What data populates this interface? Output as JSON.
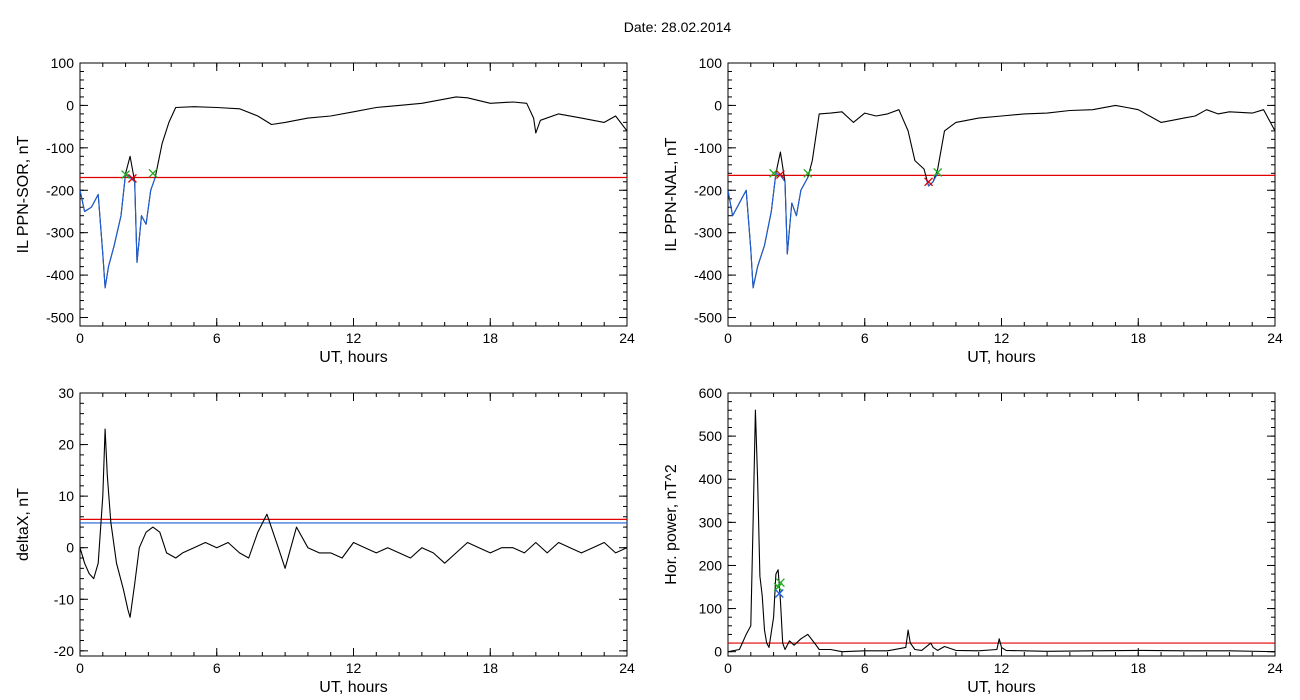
{
  "figure": {
    "title": "Date:  28.02.2014"
  },
  "chart_data": [
    {
      "type": "line",
      "ylabel": "IL PPN-SOR, nT",
      "xlabel": "UT, hours",
      "xlim": [
        0,
        24
      ],
      "ylim": [
        -520,
        100
      ],
      "xticks": [
        0,
        6,
        12,
        18,
        24
      ],
      "yticks": [
        100,
        0,
        -100,
        -200,
        -300,
        -400,
        -500
      ],
      "threshold": {
        "value": -170,
        "color": "#e00000"
      },
      "series": [
        {
          "color": "#000000",
          "x": [
            0,
            0.2,
            0.5,
            0.8,
            1.0,
            1.1,
            1.25,
            1.5,
            1.8,
            2.0,
            2.2,
            2.4,
            2.5,
            2.7,
            2.9,
            3.1,
            3.3,
            3.6,
            3.9,
            4.2,
            5,
            6,
            7,
            7.8,
            8.4,
            9,
            10,
            11,
            12,
            13,
            14,
            15,
            16,
            16.5,
            17,
            18,
            19,
            19.6,
            19.9,
            20.0,
            20.2,
            21,
            22,
            23,
            23.5,
            24
          ],
          "y": [
            -200,
            -250,
            -240,
            -210,
            -350,
            -430,
            -380,
            -330,
            -260,
            -160,
            -120,
            -180,
            -370,
            -260,
            -280,
            -200,
            -170,
            -90,
            -40,
            -5,
            -3,
            -5,
            -8,
            -25,
            -45,
            -40,
            -30,
            -25,
            -15,
            -5,
            0,
            5,
            15,
            20,
            18,
            5,
            8,
            5,
            -30,
            -65,
            -35,
            -20,
            -30,
            -40,
            -25,
            -60
          ]
        },
        {
          "color": "#1f5fd8",
          "x": [
            0,
            0.2,
            0.5,
            0.8,
            1.0,
            1.1,
            1.25,
            1.5,
            1.8,
            2.0,
            2.1,
            2.2,
            2.4,
            2.5,
            2.7,
            2.9,
            3.1,
            3.3
          ],
          "y": [
            -200,
            -250,
            -240,
            -210,
            -350,
            -430,
            -380,
            -330,
            -260,
            -160,
            -165,
            -170,
            -180,
            -370,
            -260,
            -280,
            -200,
            -170
          ]
        }
      ],
      "markers": [
        {
          "x": 2.0,
          "y": -163,
          "type": "x",
          "color": "#22aa22"
        },
        {
          "x": 2.3,
          "y": -172,
          "type": "x",
          "color": "#e00000"
        },
        {
          "x": 3.2,
          "y": -160,
          "type": "x",
          "color": "#22aa22"
        }
      ]
    },
    {
      "type": "line",
      "ylabel": "IL PPN-NAL, nT",
      "xlabel": "UT, hours",
      "xlim": [
        0,
        24
      ],
      "ylim": [
        -520,
        100
      ],
      "xticks": [
        0,
        6,
        12,
        18,
        24
      ],
      "yticks": [
        100,
        0,
        -100,
        -200,
        -300,
        -400,
        -500
      ],
      "threshold": {
        "value": -165,
        "color": "#e00000"
      },
      "series": [
        {
          "color": "#000000",
          "x": [
            0,
            0.2,
            0.5,
            0.8,
            1.0,
            1.1,
            1.3,
            1.6,
            1.9,
            2.1,
            2.3,
            2.5,
            2.6,
            2.8,
            3.0,
            3.2,
            3.5,
            3.7,
            4.0,
            4.5,
            5,
            5.5,
            6,
            6.5,
            7,
            7.5,
            7.9,
            8.2,
            8.6,
            8.8,
            9.0,
            9.2,
            9.5,
            10,
            11,
            12,
            13,
            14,
            15,
            16,
            17,
            17.5,
            18,
            19,
            19.5,
            20,
            20.5,
            21,
            21.5,
            22,
            23,
            23.5,
            24
          ],
          "y": [
            -200,
            -260,
            -230,
            -200,
            -340,
            -430,
            -380,
            -330,
            -250,
            -160,
            -110,
            -180,
            -350,
            -230,
            -260,
            -200,
            -170,
            -130,
            -20,
            -18,
            -15,
            -40,
            -18,
            -25,
            -20,
            -10,
            -60,
            -130,
            -150,
            -190,
            -180,
            -150,
            -60,
            -40,
            -30,
            -25,
            -20,
            -18,
            -12,
            -10,
            0,
            -5,
            -10,
            -40,
            -35,
            -30,
            -25,
            -10,
            -20,
            -15,
            -18,
            -10,
            -60
          ]
        },
        {
          "color": "#1f5fd8",
          "x": [
            0,
            0.2,
            0.5,
            0.8,
            1.0,
            1.1,
            1.3,
            1.6,
            1.9,
            2.1,
            2.3,
            2.5,
            2.6,
            2.8,
            3.0,
            3.2,
            3.5
          ],
          "y": [
            -200,
            -260,
            -230,
            -200,
            -340,
            -430,
            -380,
            -330,
            -250,
            -160,
            -165,
            -180,
            -350,
            -230,
            -260,
            -200,
            -170
          ]
        },
        {
          "color": "#1f5fd8",
          "x": [
            8.7,
            8.8,
            8.9,
            9.0,
            9.1,
            9.2
          ],
          "y": [
            -175,
            -190,
            -185,
            -180,
            -170,
            -160
          ]
        }
      ],
      "markers": [
        {
          "x": 2.0,
          "y": -160,
          "type": "x",
          "color": "#22aa22"
        },
        {
          "x": 2.3,
          "y": -163,
          "type": "x",
          "color": "#e00000"
        },
        {
          "x": 3.5,
          "y": -160,
          "type": "x",
          "color": "#22aa22"
        },
        {
          "x": 8.8,
          "y": -180,
          "type": "x",
          "color": "#e00000"
        },
        {
          "x": 9.2,
          "y": -158,
          "type": "x",
          "color": "#22aa22"
        }
      ]
    },
    {
      "type": "line",
      "ylabel": "deltaX, nT",
      "xlabel": "UT, hours",
      "xlim": [
        0,
        24
      ],
      "ylim": [
        -21,
        30
      ],
      "xticks": [
        0,
        6,
        12,
        18,
        24
      ],
      "yticks": [
        30,
        20,
        10,
        0,
        -10,
        -20
      ],
      "threshold": {
        "value": 5.5,
        "color": "#e00000"
      },
      "threshold2": {
        "value": 4.8,
        "color": "#1f5fd8"
      },
      "series": [
        {
          "color": "#000000",
          "x": [
            0,
            0.2,
            0.4,
            0.6,
            0.8,
            1.0,
            1.1,
            1.2,
            1.35,
            1.6,
            1.9,
            2.1,
            2.2,
            2.4,
            2.6,
            2.9,
            3.2,
            3.5,
            3.8,
            4.2,
            4.5,
            5,
            5.5,
            6,
            6.5,
            7,
            7.4,
            7.8,
            8.2,
            8.7,
            9.0,
            9.5,
            10,
            10.5,
            11,
            11.5,
            12,
            12.5,
            13,
            13.5,
            14,
            14.5,
            15,
            15.5,
            16,
            16.5,
            17,
            17.5,
            18,
            18.5,
            19,
            19.5,
            20,
            20.5,
            21,
            21.5,
            22,
            22.5,
            23,
            23.5,
            24
          ],
          "y": [
            0,
            -3,
            -5,
            -6,
            -3,
            10,
            23,
            14,
            5,
            -3,
            -8,
            -12,
            -13.5,
            -7,
            0,
            3,
            4,
            3,
            -1,
            -2,
            -1,
            0,
            1,
            0,
            1,
            -1,
            -2,
            3,
            6.5,
            0,
            -4,
            4,
            0,
            -1,
            -1,
            -2,
            1,
            0,
            -1,
            0,
            -1,
            -2,
            0,
            -1,
            -3,
            -1,
            1,
            0,
            -1,
            0,
            0,
            -1,
            1,
            -1,
            1,
            0,
            -1,
            0,
            1,
            -1,
            0
          ]
        }
      ],
      "markers": []
    },
    {
      "type": "line",
      "ylabel": "Hor. power, nT^2",
      "xlabel": "UT, hours",
      "xlim": [
        0,
        24
      ],
      "ylim": [
        -10,
        600
      ],
      "xticks": [
        0,
        6,
        12,
        18,
        24
      ],
      "yticks": [
        600,
        500,
        400,
        300,
        200,
        100,
        0
      ],
      "threshold": {
        "value": 20,
        "color": "#e00000"
      },
      "series": [
        {
          "color": "#000000",
          "x": [
            0,
            0.5,
            0.8,
            1.0,
            1.1,
            1.2,
            1.3,
            1.4,
            1.5,
            1.6,
            1.7,
            1.8,
            2.0,
            2.1,
            2.2,
            2.3,
            2.4,
            2.5,
            2.7,
            2.9,
            3.2,
            3.5,
            3.8,
            4.0,
            4.5,
            5,
            6,
            7,
            7.8,
            7.9,
            8.0,
            8.2,
            8.5,
            8.9,
            9.0,
            9.2,
            9.5,
            10,
            11,
            11.8,
            11.9,
            12,
            12.2,
            13,
            14,
            16,
            18,
            20,
            22,
            24
          ],
          "y": [
            0,
            5,
            40,
            60,
            300,
            560,
            400,
            175,
            130,
            50,
            20,
            10,
            80,
            180,
            190,
            120,
            20,
            5,
            25,
            15,
            30,
            40,
            20,
            5,
            5,
            0,
            2,
            2,
            10,
            50,
            20,
            5,
            3,
            20,
            10,
            3,
            12,
            3,
            2,
            5,
            30,
            10,
            3,
            2,
            1,
            2,
            3,
            2,
            2,
            0
          ]
        }
      ],
      "markers": [
        {
          "x": 2.2,
          "y": 150,
          "type": "x",
          "color": "#22aa22"
        },
        {
          "x": 2.25,
          "y": 135,
          "type": "x",
          "color": "#1f5fd8"
        },
        {
          "x": 2.3,
          "y": 160,
          "type": "x",
          "color": "#22aa22"
        }
      ]
    }
  ]
}
